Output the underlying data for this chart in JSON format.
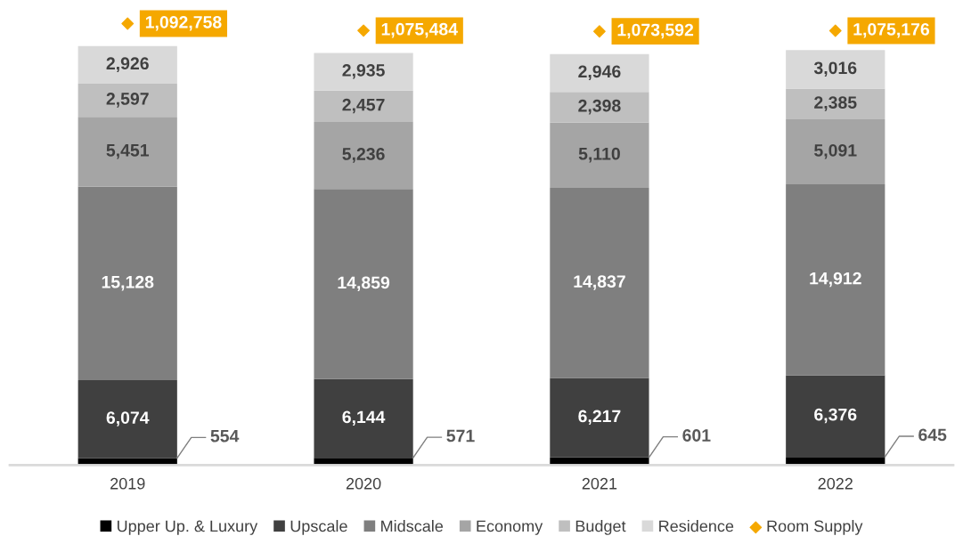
{
  "chart_data": {
    "type": "bar",
    "stacked": true,
    "categories": [
      "2019",
      "2020",
      "2021",
      "2022"
    ],
    "series": [
      {
        "name": "Upper Up. & Luxury",
        "color": "#000000",
        "values": [
          554,
          571,
          601,
          645
        ],
        "value_labels": [
          "554",
          "571",
          "601",
          "645"
        ]
      },
      {
        "name": "Upscale",
        "color": "#404040",
        "values": [
          6074,
          6144,
          6217,
          6376
        ],
        "value_labels": [
          "6,074",
          "6,144",
          "6,217",
          "6,376"
        ]
      },
      {
        "name": "Midscale",
        "color": "#7f7f7f",
        "values": [
          15128,
          14859,
          14837,
          14912
        ],
        "value_labels": [
          "15,128",
          "14,859",
          "14,837",
          "14,912"
        ]
      },
      {
        "name": "Economy",
        "color": "#a5a5a5",
        "values": [
          5451,
          5236,
          5110,
          5091
        ],
        "value_labels": [
          "5,451",
          "5,236",
          "5,110",
          "5,091"
        ]
      },
      {
        "name": "Budget",
        "color": "#bfbfbf",
        "values": [
          2597,
          2457,
          2398,
          2385
        ],
        "value_labels": [
          "2,597",
          "2,457",
          "2,398",
          "2,385"
        ]
      },
      {
        "name": "Residence",
        "color": "#d9d9d9",
        "values": [
          2926,
          2935,
          2946,
          3016
        ],
        "value_labels": [
          "2,926",
          "2,935",
          "2,946",
          "3,016"
        ]
      },
      {
        "name": "Room Supply",
        "type": "scatter",
        "axis": "y2",
        "marker": "diamond",
        "color": "#f5a800",
        "values": [
          1092758,
          1075484,
          1073592,
          1075176
        ],
        "value_labels": [
          "1,092,758",
          "1,075,484",
          "1,073,592",
          "1,075,176"
        ]
      }
    ],
    "ylim": [
      0,
      35700
    ],
    "tick_labels": "x",
    "legend": "bottom",
    "grid": false
  }
}
